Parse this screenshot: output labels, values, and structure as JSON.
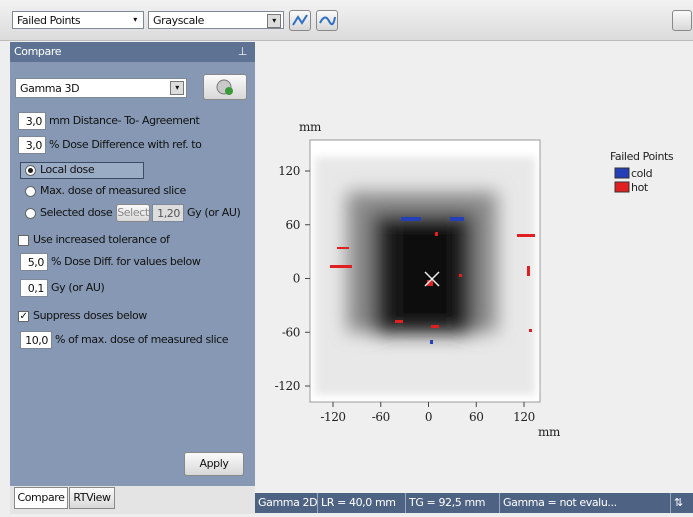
{
  "toolbar": {
    "view_dropdown": "Failed Points",
    "colormap_dropdown": "Grayscale"
  },
  "panel": {
    "title": "Compare",
    "mode_dropdown": "Gamma 3D",
    "dta": {
      "value": "3,0",
      "label": "mm Distance- To- Agreement"
    },
    "dose_diff": {
      "value": "3,0",
      "label": "% Dose Difference with ref. to"
    },
    "local_dose": "Local dose",
    "max_dose": "Max. dose of measured slice",
    "selected_dose": {
      "label": "Selected dose",
      "button": "Select",
      "value": "1,20",
      "unit": "Gy (or AU)"
    },
    "increased_tolerance": "Use increased tolerance of",
    "tol_diff": {
      "value": "5,0",
      "label": "% Dose Diff. for values below"
    },
    "tol_threshold": {
      "value": "0,1",
      "label": "Gy (or AU)"
    },
    "suppress": "Suppress doses below",
    "suppress_pct": {
      "value": "10,0",
      "label": "% of max. dose of measured slice"
    },
    "apply": "Apply"
  },
  "tabs": [
    "Compare",
    "RTView"
  ],
  "plot": {
    "y_unit": "mm",
    "x_unit": "mm",
    "yticks": [
      "120",
      "60",
      "0",
      "-60",
      "-120"
    ],
    "xticks": [
      "-120",
      "-60",
      "0",
      "60",
      "120"
    ],
    "legend": {
      "title": "Failed Points",
      "items": [
        {
          "name": "cold",
          "color": "#2340b8"
        },
        {
          "name": "hot",
          "color": "#e02020"
        }
      ]
    }
  },
  "status": [
    "Gamma 2D",
    "LR = 40,0 mm",
    "TG = 92,5 mm",
    "Gamma = not evalu..."
  ]
}
